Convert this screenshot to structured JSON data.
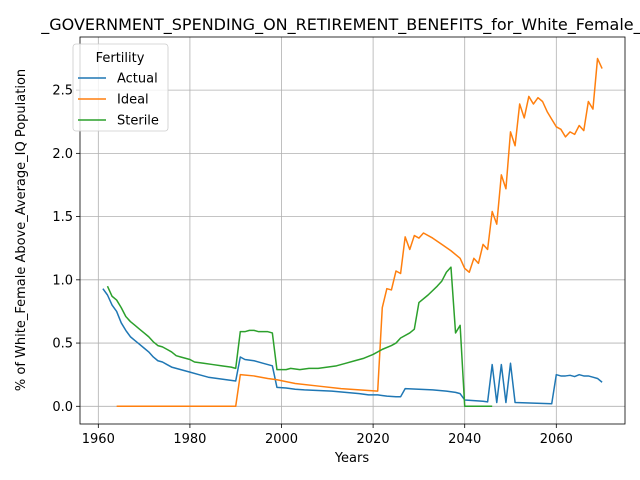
{
  "chart_data": {
    "type": "line",
    "title": "_GOVERNMENT_SPENDING_ON_RETIREMENT_BENEFITS_for_White_Female_Ab",
    "xlabel": "Years",
    "ylabel": "% of White_Female Above_Average_IQ Population",
    "xlim": [
      1956,
      2075
    ],
    "ylim": [
      -0.14,
      2.92
    ],
    "xticks": [
      1960,
      1980,
      2000,
      2020,
      2040,
      2060
    ],
    "yticks": [
      0.0,
      0.5,
      1.0,
      1.5,
      2.0,
      2.5
    ],
    "xtick_labels": [
      "1960",
      "1980",
      "2000",
      "2020",
      "2040",
      "2060"
    ],
    "ytick_labels": [
      "0.0",
      "0.5",
      "1.0",
      "1.5",
      "2.0",
      "2.5"
    ],
    "grid": true,
    "legend": {
      "title": "Fertility",
      "placement": "top-left"
    },
    "series": [
      {
        "name": "Actual",
        "color": "#1f77b4",
        "points": [
          [
            1961,
            0.93
          ],
          [
            1962,
            0.88
          ],
          [
            1963,
            0.8
          ],
          [
            1964,
            0.75
          ],
          [
            1965,
            0.66
          ],
          [
            1966,
            0.6
          ],
          [
            1967,
            0.55
          ],
          [
            1968,
            0.52
          ],
          [
            1969,
            0.49
          ],
          [
            1970,
            0.46
          ],
          [
            1971,
            0.43
          ],
          [
            1972,
            0.39
          ],
          [
            1973,
            0.36
          ],
          [
            1974,
            0.35
          ],
          [
            1975,
            0.33
          ],
          [
            1976,
            0.31
          ],
          [
            1977,
            0.3
          ],
          [
            1978,
            0.29
          ],
          [
            1979,
            0.28
          ],
          [
            1980,
            0.27
          ],
          [
            1982,
            0.25
          ],
          [
            1984,
            0.23
          ],
          [
            1986,
            0.22
          ],
          [
            1988,
            0.21
          ],
          [
            1990,
            0.2
          ],
          [
            1991,
            0.39
          ],
          [
            1992,
            0.37
          ],
          [
            1994,
            0.36
          ],
          [
            1996,
            0.34
          ],
          [
            1998,
            0.32
          ],
          [
            1999,
            0.15
          ],
          [
            2001,
            0.145
          ],
          [
            2003,
            0.135
          ],
          [
            2005,
            0.13
          ],
          [
            2008,
            0.125
          ],
          [
            2011,
            0.12
          ],
          [
            2014,
            0.11
          ],
          [
            2017,
            0.1
          ],
          [
            2019,
            0.09
          ],
          [
            2021,
            0.09
          ],
          [
            2023,
            0.08
          ],
          [
            2025,
            0.075
          ],
          [
            2026,
            0.075
          ],
          [
            2027,
            0.14
          ],
          [
            2030,
            0.135
          ],
          [
            2033,
            0.13
          ],
          [
            2036,
            0.12
          ],
          [
            2038,
            0.11
          ],
          [
            2039,
            0.1
          ],
          [
            2040,
            0.05
          ],
          [
            2042,
            0.045
          ],
          [
            2044,
            0.04
          ],
          [
            2045,
            0.035
          ],
          [
            2046,
            0.33
          ],
          [
            2047,
            0.03
          ],
          [
            2048,
            0.33
          ],
          [
            2049,
            0.03
          ],
          [
            2050,
            0.34
          ],
          [
            2051,
            0.03
          ],
          [
            2055,
            0.025
          ],
          [
            2059,
            0.02
          ],
          [
            2060,
            0.25
          ],
          [
            2061,
            0.24
          ],
          [
            2062,
            0.24
          ],
          [
            2063,
            0.245
          ],
          [
            2064,
            0.235
          ],
          [
            2065,
            0.25
          ],
          [
            2066,
            0.24
          ],
          [
            2067,
            0.24
          ],
          [
            2068,
            0.23
          ],
          [
            2069,
            0.22
          ],
          [
            2070,
            0.19
          ]
        ]
      },
      {
        "name": "Ideal",
        "color": "#ff7f0e",
        "points": [
          [
            1964,
            0.0
          ],
          [
            1990,
            0.0
          ],
          [
            1991,
            0.25
          ],
          [
            1994,
            0.24
          ],
          [
            1997,
            0.22
          ],
          [
            1999,
            0.21
          ],
          [
            2003,
            0.18
          ],
          [
            2008,
            0.16
          ],
          [
            2013,
            0.14
          ],
          [
            2017,
            0.13
          ],
          [
            2021,
            0.12
          ],
          [
            2022,
            0.78
          ],
          [
            2023,
            0.93
          ],
          [
            2024,
            0.92
          ],
          [
            2025,
            1.07
          ],
          [
            2026,
            1.05
          ],
          [
            2027,
            1.34
          ],
          [
            2028,
            1.24
          ],
          [
            2029,
            1.35
          ],
          [
            2030,
            1.33
          ],
          [
            2031,
            1.37
          ],
          [
            2033,
            1.33
          ],
          [
            2035,
            1.28
          ],
          [
            2037,
            1.23
          ],
          [
            2039,
            1.17
          ],
          [
            2040,
            1.09
          ],
          [
            2041,
            1.06
          ],
          [
            2042,
            1.17
          ],
          [
            2043,
            1.13
          ],
          [
            2044,
            1.28
          ],
          [
            2045,
            1.24
          ],
          [
            2046,
            1.54
          ],
          [
            2047,
            1.44
          ],
          [
            2048,
            1.83
          ],
          [
            2049,
            1.72
          ],
          [
            2050,
            2.17
          ],
          [
            2051,
            2.06
          ],
          [
            2052,
            2.39
          ],
          [
            2053,
            2.28
          ],
          [
            2054,
            2.45
          ],
          [
            2055,
            2.39
          ],
          [
            2056,
            2.44
          ],
          [
            2057,
            2.41
          ],
          [
            2058,
            2.33
          ],
          [
            2059,
            2.27
          ],
          [
            2060,
            2.21
          ],
          [
            2061,
            2.19
          ],
          [
            2062,
            2.13
          ],
          [
            2063,
            2.17
          ],
          [
            2064,
            2.15
          ],
          [
            2065,
            2.22
          ],
          [
            2066,
            2.18
          ],
          [
            2067,
            2.41
          ],
          [
            2068,
            2.35
          ],
          [
            2069,
            2.75
          ],
          [
            2070,
            2.67
          ]
        ]
      },
      {
        "name": "Sterile",
        "color": "#2ca02c",
        "points": [
          [
            1962,
            0.95
          ],
          [
            1963,
            0.87
          ],
          [
            1964,
            0.84
          ],
          [
            1965,
            0.78
          ],
          [
            1966,
            0.71
          ],
          [
            1967,
            0.67
          ],
          [
            1968,
            0.64
          ],
          [
            1969,
            0.61
          ],
          [
            1970,
            0.58
          ],
          [
            1971,
            0.55
          ],
          [
            1972,
            0.51
          ],
          [
            1973,
            0.48
          ],
          [
            1974,
            0.47
          ],
          [
            1975,
            0.45
          ],
          [
            1976,
            0.43
          ],
          [
            1977,
            0.4
          ],
          [
            1978,
            0.39
          ],
          [
            1980,
            0.37
          ],
          [
            1981,
            0.35
          ],
          [
            1983,
            0.34
          ],
          [
            1985,
            0.33
          ],
          [
            1987,
            0.32
          ],
          [
            1989,
            0.31
          ],
          [
            1990,
            0.3
          ],
          [
            1991,
            0.59
          ],
          [
            1992,
            0.59
          ],
          [
            1993,
            0.6
          ],
          [
            1994,
            0.6
          ],
          [
            1995,
            0.59
          ],
          [
            1997,
            0.59
          ],
          [
            1998,
            0.58
          ],
          [
            1999,
            0.29
          ],
          [
            2001,
            0.29
          ],
          [
            2002,
            0.3
          ],
          [
            2004,
            0.29
          ],
          [
            2006,
            0.3
          ],
          [
            2008,
            0.3
          ],
          [
            2010,
            0.31
          ],
          [
            2012,
            0.32
          ],
          [
            2014,
            0.34
          ],
          [
            2016,
            0.36
          ],
          [
            2018,
            0.38
          ],
          [
            2020,
            0.41
          ],
          [
            2022,
            0.45
          ],
          [
            2024,
            0.48
          ],
          [
            2025,
            0.5
          ],
          [
            2026,
            0.54
          ],
          [
            2028,
            0.58
          ],
          [
            2029,
            0.61
          ],
          [
            2030,
            0.82
          ],
          [
            2032,
            0.88
          ],
          [
            2034,
            0.95
          ],
          [
            2035,
            0.99
          ],
          [
            2036,
            1.06
          ],
          [
            2037,
            1.1
          ],
          [
            2038,
            0.58
          ],
          [
            2039,
            0.64
          ],
          [
            2040,
            0.0
          ],
          [
            2046,
            0.0
          ]
        ]
      }
    ]
  }
}
